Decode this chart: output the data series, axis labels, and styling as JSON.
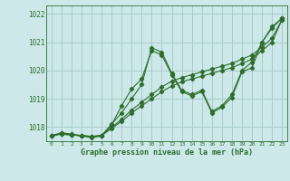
{
  "xlabel": "Graphe pression niveau de la mer (hPa)",
  "background_color": "#cce8e8",
  "grid_color": "#aacccc",
  "line_color": "#2d6e2d",
  "xlim": [
    -0.5,
    23.5
  ],
  "ylim": [
    1017.5,
    1022.3
  ],
  "yticks": [
    1018,
    1019,
    1020,
    1021,
    1022
  ],
  "xticks": [
    0,
    1,
    2,
    3,
    4,
    5,
    6,
    7,
    8,
    9,
    10,
    11,
    12,
    13,
    14,
    15,
    16,
    17,
    18,
    19,
    20,
    21,
    22,
    23
  ],
  "series1_x": [
    0,
    1,
    2,
    3,
    4,
    5,
    6,
    7,
    8,
    9,
    10,
    11,
    12,
    13,
    14,
    15,
    16,
    17,
    18,
    19,
    20,
    21,
    22,
    23
  ],
  "series1_y": [
    1017.7,
    1017.8,
    1017.75,
    1017.7,
    1017.65,
    1017.7,
    1018.1,
    1018.5,
    1019.0,
    1019.5,
    1020.8,
    1020.65,
    1019.9,
    1019.3,
    1019.15,
    1019.3,
    1018.55,
    1018.75,
    1019.15,
    1020.0,
    1020.3,
    1021.0,
    1021.55,
    1021.85
  ],
  "series2_x": [
    0,
    1,
    2,
    3,
    4,
    5,
    6,
    7,
    8,
    9,
    10,
    11,
    12,
    13,
    14,
    15,
    16,
    17,
    18,
    19,
    20,
    21,
    22,
    23
  ],
  "series2_y": [
    1017.7,
    1017.75,
    1017.72,
    1017.7,
    1017.67,
    1017.7,
    1017.95,
    1018.2,
    1018.5,
    1018.75,
    1019.0,
    1019.25,
    1019.45,
    1019.6,
    1019.7,
    1019.8,
    1019.9,
    1020.0,
    1020.1,
    1020.25,
    1020.4,
    1020.7,
    1021.0,
    1021.8
  ],
  "series3_x": [
    0,
    1,
    2,
    3,
    4,
    5,
    6,
    7,
    8,
    9,
    10,
    11,
    12,
    13,
    14,
    15,
    16,
    17,
    18,
    19,
    20,
    21,
    22,
    23
  ],
  "series3_y": [
    1017.7,
    1017.75,
    1017.72,
    1017.7,
    1017.67,
    1017.7,
    1017.98,
    1018.28,
    1018.6,
    1018.88,
    1019.15,
    1019.42,
    1019.62,
    1019.75,
    1019.85,
    1019.95,
    1020.05,
    1020.15,
    1020.25,
    1020.4,
    1020.55,
    1020.82,
    1021.15,
    1021.8
  ],
  "series4_x": [
    0,
    1,
    2,
    3,
    4,
    5,
    6,
    7,
    8,
    9,
    10,
    11,
    12,
    13,
    14,
    15,
    16,
    17,
    18,
    19,
    20,
    21,
    22,
    23
  ],
  "series4_y": [
    1017.68,
    1017.78,
    1017.73,
    1017.68,
    1017.63,
    1017.68,
    1018.08,
    1018.75,
    1019.35,
    1019.7,
    1020.7,
    1020.55,
    1019.85,
    1019.25,
    1019.1,
    1019.25,
    1018.5,
    1018.7,
    1019.05,
    1019.95,
    1020.1,
    1021.0,
    1021.5,
    1021.85
  ]
}
